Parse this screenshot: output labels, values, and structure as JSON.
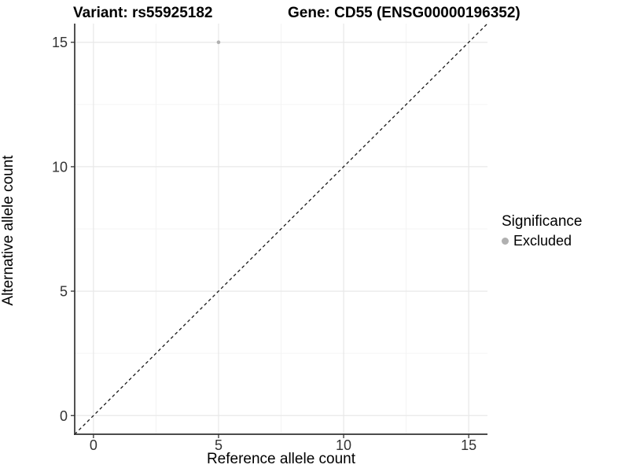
{
  "title": {
    "variant": "Variant: rs55925182",
    "gene": "Gene: CD55 (ENSG00000196352)"
  },
  "axes": {
    "x_label": "Reference allele count",
    "y_label": "Alternative allele count"
  },
  "legend": {
    "title": "Significance",
    "items": [
      {
        "label": "Excluded",
        "color": "#b0b0b0"
      }
    ]
  },
  "colors": {
    "background": "#ffffff",
    "grid_major": "#e8e8e8",
    "grid_minor": "#f3f3f3",
    "axis_line": "#333333",
    "tick_mark": "#333333",
    "tick_label": "#333333",
    "point": "#b0b0b0",
    "reference_line": "#1a1a1a"
  },
  "chart_data": {
    "type": "scatter",
    "title": "Variant: rs55925182    Gene: CD55 (ENSG00000196352)",
    "xlabel": "Reference allele count",
    "ylabel": "Alternative allele count",
    "xlim": [
      -0.75,
      15.75
    ],
    "ylim": [
      -0.75,
      15.75
    ],
    "x_ticks": [
      0,
      5,
      10,
      15
    ],
    "y_ticks": [
      0,
      5,
      10,
      15
    ],
    "x_minor_ticks": [
      2.5,
      7.5,
      12.5
    ],
    "y_minor_ticks": [
      2.5,
      7.5,
      12.5
    ],
    "grid": true,
    "legend_position": "right",
    "series": [
      {
        "name": "Excluded",
        "color": "#b0b0b0",
        "points": [
          {
            "x": 5,
            "y": 15
          }
        ]
      }
    ],
    "reference_line": {
      "kind": "identity",
      "slope": 1,
      "intercept": 0,
      "style": "dashed",
      "color": "#1a1a1a"
    }
  }
}
